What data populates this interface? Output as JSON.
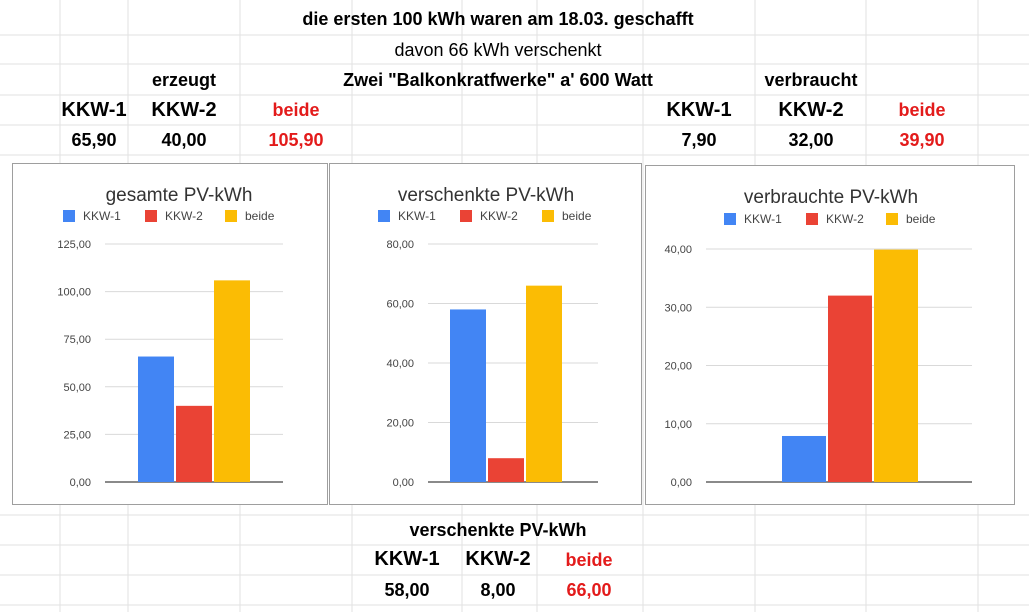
{
  "sheet": {
    "title": "die ersten 100 kWh waren am 18.03. geschafft",
    "subtitle": "davon 66 kWh verschenkt",
    "erzeugt_label": "erzeugt",
    "center_label": "Zwei \"Balkonkratfwerke\" a' 600 Watt",
    "verbraucht_label": "verbraucht",
    "left_headers": [
      "KKW-1",
      "KKW-2",
      "beide"
    ],
    "left_values": [
      "65,90",
      "40,00",
      "105,90"
    ],
    "right_headers": [
      "KKW-1",
      "KKW-2",
      "beide"
    ],
    "right_values": [
      "7,90",
      "32,00",
      "39,90"
    ],
    "bottom_title": "verschenkte PV-kWh",
    "bottom_headers": [
      "KKW-1",
      "KKW-2",
      "beide"
    ],
    "bottom_values": [
      "58,00",
      "8,00",
      "66,00"
    ],
    "highlight_color": "#e31b1b"
  },
  "chart_data": [
    {
      "type": "bar",
      "title": "gesamte PV-kWh",
      "categories": [
        ""
      ],
      "series": [
        {
          "name": "KKW-1",
          "values": [
            65.9
          ],
          "color": "#4285f4"
        },
        {
          "name": "KKW-2",
          "values": [
            40.0
          ],
          "color": "#ea4335"
        },
        {
          "name": "beide",
          "values": [
            105.9
          ],
          "color": "#fbbc04"
        }
      ],
      "ylim": [
        0,
        125
      ],
      "yticks": [
        "0,00",
        "25,00",
        "50,00",
        "75,00",
        "100,00",
        "125,00"
      ],
      "grid": true,
      "legend": "top"
    },
    {
      "type": "bar",
      "title": "verschenkte PV-kWh",
      "categories": [
        ""
      ],
      "series": [
        {
          "name": "KKW-1",
          "values": [
            58.0
          ],
          "color": "#4285f4"
        },
        {
          "name": "KKW-2",
          "values": [
            8.0
          ],
          "color": "#ea4335"
        },
        {
          "name": "beide",
          "values": [
            66.0
          ],
          "color": "#fbbc04"
        }
      ],
      "ylim": [
        0,
        80
      ],
      "yticks": [
        "0,00",
        "20,00",
        "40,00",
        "60,00",
        "80,00"
      ],
      "grid": true,
      "legend": "top"
    },
    {
      "type": "bar",
      "title": "verbrauchte PV-kWh",
      "categories": [
        ""
      ],
      "series": [
        {
          "name": "KKW-1",
          "values": [
            7.9
          ],
          "color": "#4285f4"
        },
        {
          "name": "KKW-2",
          "values": [
            32.0
          ],
          "color": "#ea4335"
        },
        {
          "name": "beide",
          "values": [
            39.9
          ],
          "color": "#fbbc04"
        }
      ],
      "ylim": [
        0,
        40
      ],
      "yticks": [
        "0,00",
        "10,00",
        "20,00",
        "30,00",
        "40,00"
      ],
      "grid": true,
      "legend": "top"
    }
  ]
}
